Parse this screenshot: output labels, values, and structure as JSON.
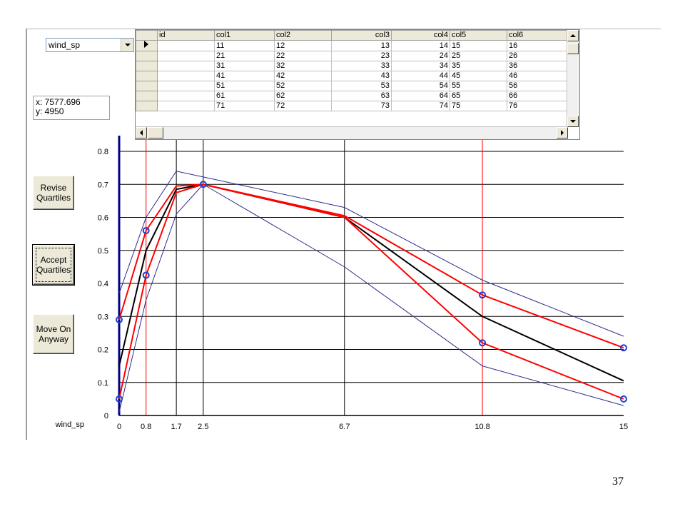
{
  "controls": {
    "variable_select": {
      "value": "wind_sp"
    },
    "coordinate_readout": {
      "x": "x: 7577.696",
      "y": "y: 4950"
    },
    "buttons": [
      {
        "id": "revise",
        "label": "Revise\nQuartiles"
      },
      {
        "id": "accept",
        "label": "Accept\nQuartiles"
      },
      {
        "id": "move_on",
        "label": "Move On\nAnyway"
      }
    ]
  },
  "data_grid": {
    "columns": [
      "id",
      "col1",
      "col2",
      "col3",
      "col4",
      "col5",
      "col6"
    ],
    "rows": [
      [
        "",
        "11",
        "12",
        "13",
        "14",
        "15",
        "16"
      ],
      [
        "",
        "21",
        "22",
        "23",
        "24",
        "25",
        "26"
      ],
      [
        "",
        "31",
        "32",
        "33",
        "34",
        "35",
        "36"
      ],
      [
        "",
        "41",
        "42",
        "43",
        "44",
        "45",
        "46"
      ],
      [
        "",
        "51",
        "52",
        "53",
        "54",
        "55",
        "56"
      ],
      [
        "",
        "61",
        "62",
        "63",
        "64",
        "65",
        "66"
      ],
      [
        "",
        "71",
        "72",
        "73",
        "74",
        "75",
        "76"
      ]
    ]
  },
  "chart_data": {
    "type": "line",
    "xlabel": "wind_sp",
    "xlim": [
      0,
      15
    ],
    "ylim": [
      0,
      0.8
    ],
    "x_ticks": [
      0,
      0.8,
      1.7,
      2.5,
      6.7,
      10.8,
      15
    ],
    "x_tick_labels": [
      "0",
      "0.8",
      "1.7",
      "2.5",
      "6.7",
      "10.8",
      "15"
    ],
    "y_ticks": [
      0,
      0.1,
      0.2,
      0.3,
      0.4,
      0.5,
      0.6,
      0.7,
      0.8
    ],
    "y_tick_labels": [
      "0",
      "0.1",
      "0.2",
      "0.3",
      "0.4",
      "0.5",
      "0.6",
      "0.7",
      "0.8"
    ],
    "black_vlines": [
      1.7,
      2.5,
      6.7
    ],
    "red_vlines": [
      0.8,
      10.8
    ],
    "series": [
      {
        "role": "outer-upper",
        "color": "#2b2b8a",
        "width": 1,
        "x": [
          0,
          0.8,
          1.7,
          6.7,
          10.8,
          15
        ],
        "y": [
          0.37,
          0.6,
          0.74,
          0.63,
          0.41,
          0.24
        ]
      },
      {
        "role": "outer-lower",
        "color": "#2b2b8a",
        "width": 1,
        "x": [
          0,
          0.8,
          1.7,
          2.5,
          6.7,
          10.8,
          15
        ],
        "y": [
          0.01,
          0.35,
          0.61,
          0.7,
          0.45,
          0.15,
          0.03
        ]
      },
      {
        "role": "median",
        "color": "#000000",
        "width": 2,
        "x": [
          0,
          0.8,
          1.7,
          2.5,
          6.7,
          10.8,
          15
        ],
        "y": [
          0.15,
          0.5,
          0.685,
          0.7,
          0.6,
          0.3,
          0.105
        ]
      },
      {
        "role": "upper-quartile",
        "color": "#ff0000",
        "width": 2,
        "x": [
          0,
          0.8,
          1.7,
          2.5,
          6.7,
          10.8,
          15
        ],
        "y": [
          0.29,
          0.56,
          0.695,
          0.7,
          0.605,
          0.365,
          0.205
        ]
      },
      {
        "role": "lower-quartile",
        "color": "#ff0000",
        "width": 2,
        "x": [
          0,
          0.8,
          1.7,
          2.5,
          6.7,
          10.8,
          15
        ],
        "y": [
          0.05,
          0.425,
          0.675,
          0.7,
          0.6,
          0.22,
          0.05
        ]
      }
    ],
    "handles": [
      {
        "x": 0,
        "y": 0.29
      },
      {
        "x": 0,
        "y": 0.05
      },
      {
        "x": 0.8,
        "y": 0.56
      },
      {
        "x": 0.8,
        "y": 0.425
      },
      {
        "x": 2.5,
        "y": 0.7
      },
      {
        "x": 10.8,
        "y": 0.365
      },
      {
        "x": 10.8,
        "y": 0.22
      },
      {
        "x": 15,
        "y": 0.205
      },
      {
        "x": 15,
        "y": 0.05
      }
    ],
    "handle_color": "#1f3fd6"
  },
  "page": {
    "number": "37"
  }
}
